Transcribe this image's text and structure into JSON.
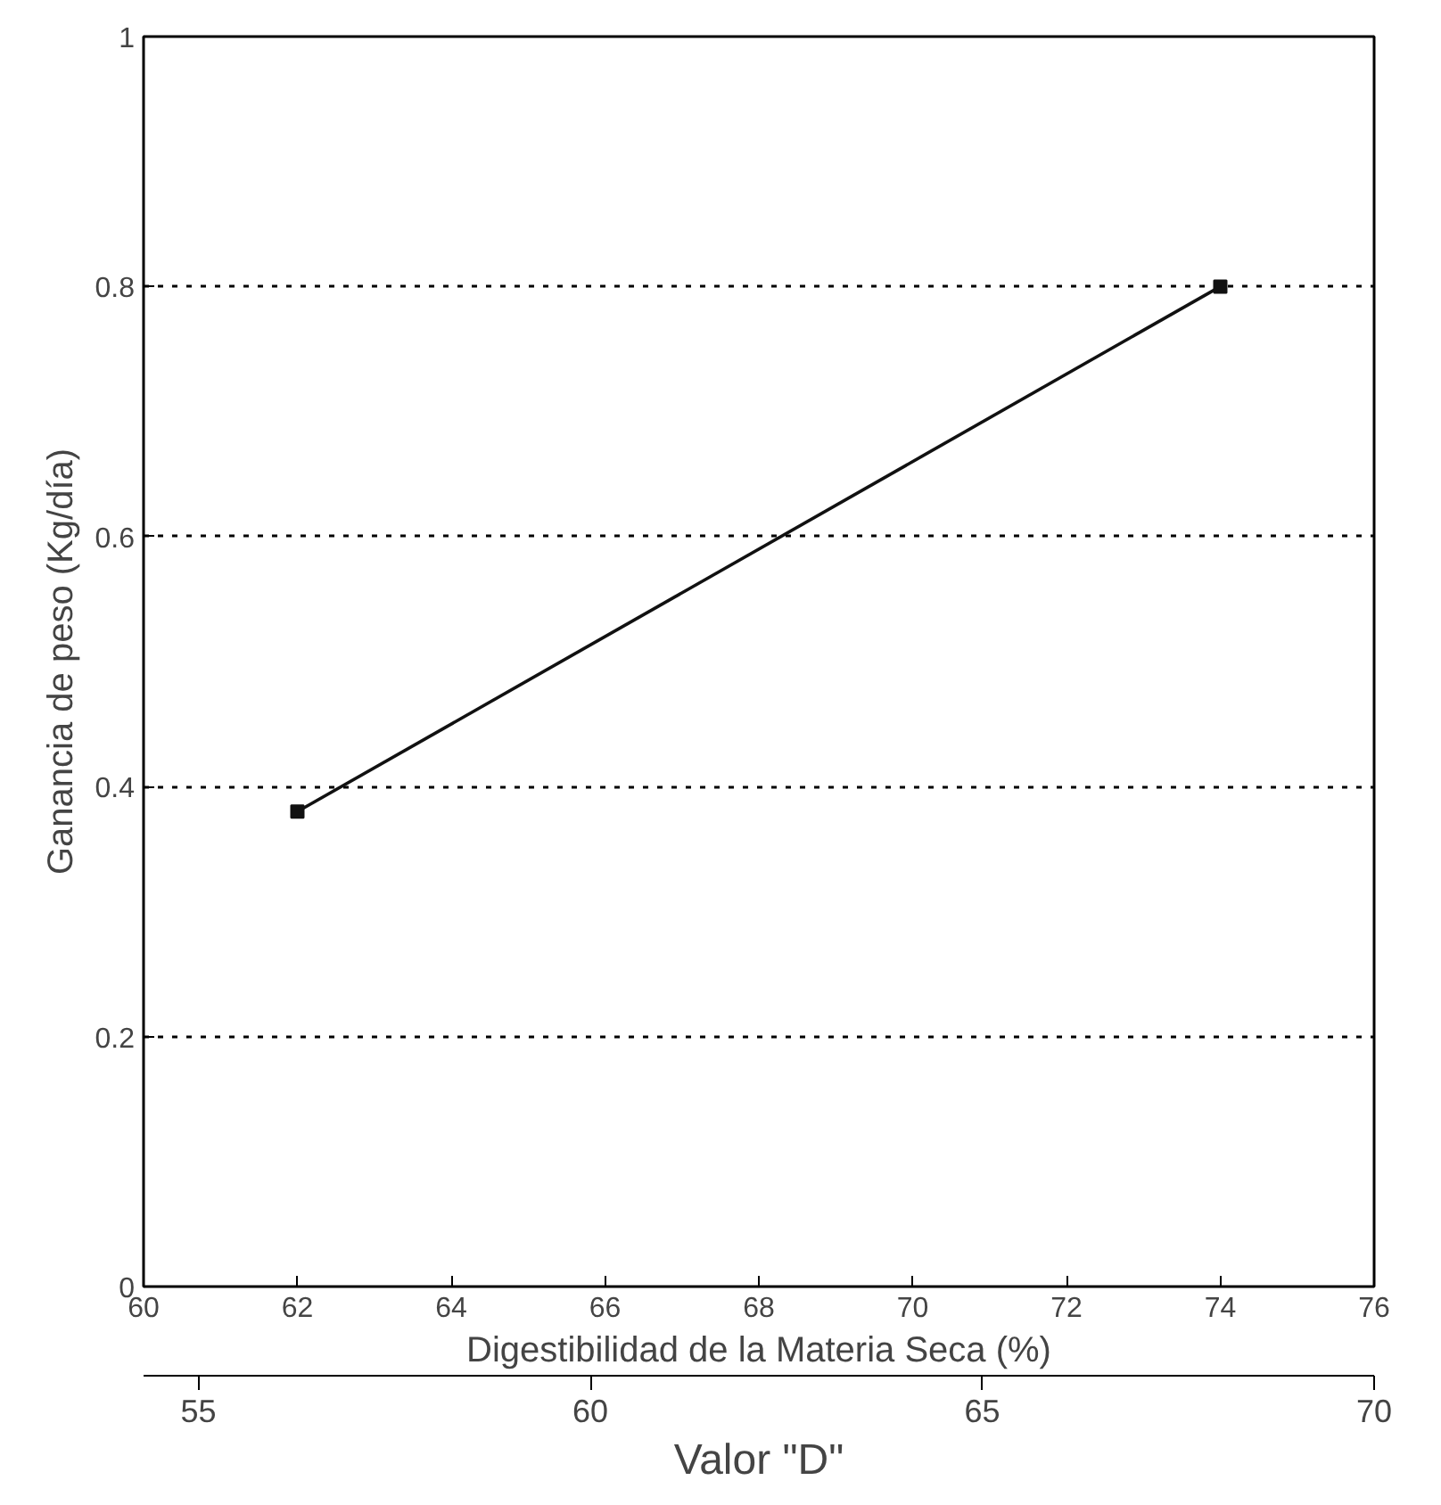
{
  "chart_data": {
    "type": "line",
    "xlabel": "Digestibilidad de la Materia Seca (%)",
    "ylabel": "Ganancia de peso (Kg/día)",
    "x2label": "Valor \"D\"",
    "x": [
      62,
      74
    ],
    "series": [
      {
        "color": "#111111",
        "values": [
          0.38,
          0.8
        ]
      }
    ],
    "xlim": [
      60,
      76
    ],
    "xticks": [
      60,
      62,
      64,
      66,
      68,
      70,
      72,
      74,
      76
    ],
    "ylim": [
      0,
      1
    ],
    "yticks": [
      0,
      0.2,
      0.4,
      0.6,
      0.8,
      1
    ],
    "x2lim": [
      54.3,
      70
    ],
    "x2ticks": [
      55,
      60,
      65,
      70
    ],
    "grid": "y",
    "marker": "square",
    "line_style": "solid"
  }
}
